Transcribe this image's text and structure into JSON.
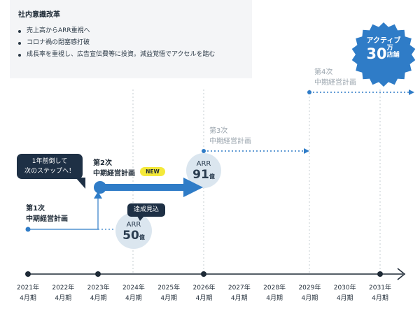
{
  "intro": {
    "title": "社内意識改革",
    "items": [
      "売上高からARR重視へ",
      "コロナ禍の閉塞感打破",
      "成長率を重視し、広告宣伝費等に投資。減益覚悟でアクセルを踏む"
    ]
  },
  "badge": {
    "line1": "アクティブ",
    "number": "30",
    "unit_top": "万",
    "unit_bottom": "店舗"
  },
  "plans": {
    "first": {
      "line1": "第1次",
      "line2": "中期経営計画"
    },
    "second": {
      "line1": "第2次",
      "line2": "中期経営計画",
      "tag": "NEW"
    },
    "third": {
      "line1": "第3次",
      "line2": "中期経営計画"
    },
    "fourth": {
      "line1": "第4次",
      "line2": "中期経営計画"
    }
  },
  "callouts": {
    "ahead": {
      "line1": "1年前倒して",
      "line2": "次のステップへ！"
    },
    "expected": "達成見込"
  },
  "arr": {
    "first": {
      "label": "ARR",
      "value": "50",
      "unit": "億"
    },
    "second": {
      "label": "ARR",
      "value": "91",
      "unit": "億"
    }
  },
  "timeline": [
    {
      "year": "2021年",
      "period": "4月期"
    },
    {
      "year": "2022年",
      "period": "4月期"
    },
    {
      "year": "2023年",
      "period": "4月期"
    },
    {
      "year": "2024年",
      "period": "4月期"
    },
    {
      "year": "2025年",
      "period": "4月期"
    },
    {
      "year": "2026年",
      "period": "4月期"
    },
    {
      "year": "2027年",
      "period": "4月期"
    },
    {
      "year": "2028年",
      "period": "4月期"
    },
    {
      "year": "2029年",
      "period": "4月期"
    },
    {
      "year": "2030年",
      "period": "4月期"
    },
    {
      "year": "2031年",
      "period": "4月期"
    }
  ],
  "colors": {
    "accent": "#2f7cc7",
    "navy": "#1e3045",
    "muted": "#9aa4ad",
    "tag": "#f4e93a",
    "circle": "#dbe6ef"
  }
}
